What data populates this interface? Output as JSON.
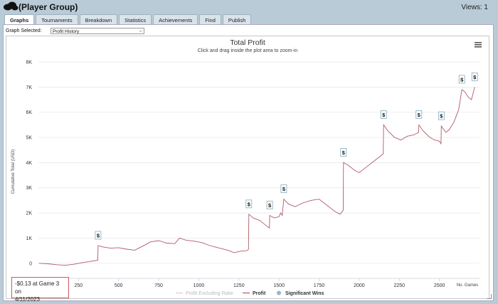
{
  "header": {
    "group_title": "(Player Group)",
    "views_label": "Views: 1"
  },
  "tabs": [
    {
      "label": "Graphs",
      "active": true
    },
    {
      "label": "Tournaments",
      "active": false
    },
    {
      "label": "Breakdown",
      "active": false
    },
    {
      "label": "Statistics",
      "active": false
    },
    {
      "label": "Achievements",
      "active": false
    },
    {
      "label": "Find",
      "active": false
    },
    {
      "label": "Publish",
      "active": false
    }
  ],
  "graph_select": {
    "label": "Graph Selected:",
    "value": "Profit History"
  },
  "tooltip": {
    "line1": "-$0.13 at Game 3 on",
    "line2": "4/11/2023"
  },
  "chart_data": {
    "type": "line",
    "title": "Total Profit",
    "subtitle": "Click and drag inside the plot area to zoom-in",
    "ylabel": "Cumulative Total (USD)",
    "xlabel": "No. Games",
    "xlim": [
      0,
      2750
    ],
    "ylim": [
      -600,
      8000
    ],
    "x_ticks": [
      "0",
      "250",
      "500",
      "750",
      "1000",
      "1250",
      "1500",
      "1750",
      "2000",
      "2250",
      "2500"
    ],
    "y_ticks": [
      "0",
      "1K",
      "2K",
      "3K",
      "4K",
      "5K",
      "6K",
      "7K",
      "8K"
    ],
    "legend": [
      "Profit Excluding Rake",
      "Profit",
      "Significant Wins"
    ],
    "legend_position": "bottom-center",
    "colors": {
      "profit": "#b05a6a",
      "excluding_rake": "#e6c9ce",
      "significant": "#8fb8d8"
    },
    "series": [
      {
        "name": "Profit",
        "points": [
          [
            3,
            0
          ],
          [
            60,
            -20
          ],
          [
            120,
            -60
          ],
          [
            170,
            -80
          ],
          [
            220,
            -40
          ],
          [
            270,
            20
          ],
          [
            330,
            80
          ],
          [
            370,
            120
          ],
          [
            372,
            700
          ],
          [
            400,
            650
          ],
          [
            450,
            600
          ],
          [
            500,
            620
          ],
          [
            550,
            560
          ],
          [
            600,
            520
          ],
          [
            650,
            680
          ],
          [
            700,
            850
          ],
          [
            750,
            900
          ],
          [
            800,
            800
          ],
          [
            850,
            780
          ],
          [
            880,
            1000
          ],
          [
            920,
            920
          ],
          [
            970,
            880
          ],
          [
            1020,
            820
          ],
          [
            1070,
            700
          ],
          [
            1100,
            650
          ],
          [
            1130,
            600
          ],
          [
            1180,
            520
          ],
          [
            1220,
            420
          ],
          [
            1260,
            480
          ],
          [
            1300,
            500
          ],
          [
            1310,
            550
          ],
          [
            1312,
            1950
          ],
          [
            1340,
            1800
          ],
          [
            1380,
            1700
          ],
          [
            1420,
            1500
          ],
          [
            1440,
            1400
          ],
          [
            1442,
            1900
          ],
          [
            1470,
            1800
          ],
          [
            1500,
            1850
          ],
          [
            1510,
            2000
          ],
          [
            1520,
            1900
          ],
          [
            1530,
            2550
          ],
          [
            1560,
            2350
          ],
          [
            1600,
            2250
          ],
          [
            1650,
            2400
          ],
          [
            1700,
            2500
          ],
          [
            1750,
            2550
          ],
          [
            1800,
            2300
          ],
          [
            1850,
            2050
          ],
          [
            1880,
            1950
          ],
          [
            1900,
            2100
          ],
          [
            1902,
            4000
          ],
          [
            1930,
            3900
          ],
          [
            1970,
            3700
          ],
          [
            2000,
            3600
          ],
          [
            2050,
            3850
          ],
          [
            2100,
            4100
          ],
          [
            2130,
            4250
          ],
          [
            2150,
            4350
          ],
          [
            2152,
            5500
          ],
          [
            2180,
            5250
          ],
          [
            2220,
            5000
          ],
          [
            2260,
            4900
          ],
          [
            2300,
            5050
          ],
          [
            2340,
            5100
          ],
          [
            2370,
            5200
          ],
          [
            2372,
            5500
          ],
          [
            2400,
            5250
          ],
          [
            2440,
            5000
          ],
          [
            2470,
            4900
          ],
          [
            2500,
            4850
          ],
          [
            2510,
            4750
          ],
          [
            2512,
            5450
          ],
          [
            2540,
            5200
          ],
          [
            2560,
            5300
          ],
          [
            2590,
            5600
          ],
          [
            2620,
            6100
          ],
          [
            2640,
            6900
          ],
          [
            2660,
            6800
          ],
          [
            2680,
            6600
          ],
          [
            2700,
            6500
          ],
          [
            2720,
            7000
          ]
        ]
      }
    ],
    "significant_wins": [
      [
        372,
        700
      ],
      [
        1312,
        1950
      ],
      [
        1442,
        1900
      ],
      [
        1530,
        2550
      ],
      [
        1902,
        4000
      ],
      [
        2152,
        5500
      ],
      [
        2372,
        5500
      ],
      [
        2512,
        5450
      ],
      [
        2640,
        6900
      ],
      [
        2720,
        7000
      ]
    ]
  }
}
